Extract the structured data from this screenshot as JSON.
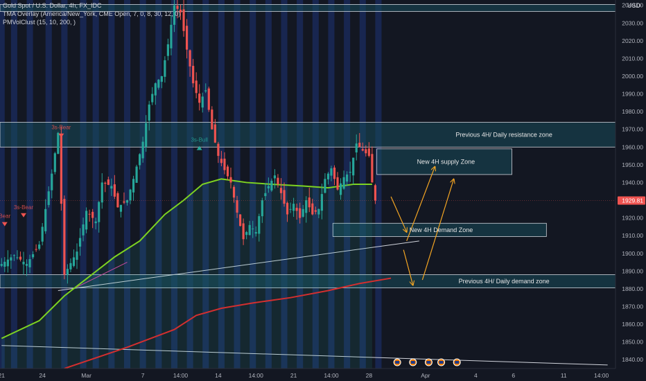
{
  "legend": {
    "title": "Gold Spot / U.S. Dollar, 4h, FX_IDC",
    "indicator1": "TMA Overlay (America/New_York, CME Open, 7, 0, 8, 30, 12, 0)",
    "indicator2": "PMVolClust (15, 10, 200, )"
  },
  "currency": "USD",
  "colors": {
    "background": "#131722",
    "candle_up": "#26a69a",
    "candle_down": "#ef5350",
    "ma_fast": "#7ed321",
    "ma_slow": "#d32f2f",
    "zone_fill": "#184a5a",
    "zone_border": "#d1d4dc",
    "annotation_arrow": "#f5a623",
    "session_stripe": "#1e3a8a",
    "price_tag": "#ef5350"
  },
  "chart_data": {
    "type": "candlestick",
    "symbol": "XAUUSD",
    "timeframe": "4h",
    "ylim": [
      1835,
      2043
    ],
    "y_ticks": [
      1840,
      1850,
      1860,
      1870,
      1880,
      1890,
      1900,
      1910,
      1920,
      1930,
      1940,
      1950,
      1960,
      1970,
      1980,
      1990,
      2000,
      2010,
      2020,
      2030,
      2040
    ],
    "y_tick_labels": [
      "1840.00",
      "1850.00",
      "1860.00",
      "1870.00",
      "1880.00",
      "1890.00",
      "1900.00",
      "1910.00",
      "1920.00",
      "1930.00",
      "1940.00",
      "1950.00",
      "1960.00",
      "1970.00",
      "1980.00",
      "1990.00",
      "2000.00",
      "2010.00",
      "2020.00",
      "2030.00",
      "2040.00"
    ],
    "x_tick_labels": [
      "21",
      "24",
      "Mar",
      "7",
      "14:00",
      "14",
      "14:00",
      "21",
      "14:00",
      "28",
      "Apr",
      "4",
      "6",
      "11",
      "14:00"
    ],
    "x_tick_bars": [
      0,
      13,
      27,
      45,
      57,
      69,
      81,
      93,
      105,
      117,
      135,
      151,
      163,
      179,
      191
    ],
    "bar_count": 196,
    "last_price": 1929.81,
    "last_price_label": "1929.81",
    "ohlc_anchors": [
      [
        0,
        1894
      ],
      [
        4,
        1899
      ],
      [
        8,
        1894
      ],
      [
        12,
        1905
      ],
      [
        16,
        1945
      ],
      [
        18,
        1968
      ],
      [
        20,
        1888
      ],
      [
        24,
        1901
      ],
      [
        27,
        1924
      ],
      [
        30,
        1918
      ],
      [
        32,
        1940
      ],
      [
        35,
        1938
      ],
      [
        37,
        1926
      ],
      [
        40,
        1930
      ],
      [
        42,
        1942
      ],
      [
        45,
        1963
      ],
      [
        47,
        1984
      ],
      [
        49,
        1996
      ],
      [
        51,
        2000
      ],
      [
        53,
        2018
      ],
      [
        55,
        2040
      ],
      [
        57,
        2036
      ],
      [
        59,
        2015
      ],
      [
        61,
        1996
      ],
      [
        63,
        1985
      ],
      [
        65,
        1992
      ],
      [
        67,
        1970
      ],
      [
        69,
        1955
      ],
      [
        71,
        1947
      ],
      [
        73,
        1940
      ],
      [
        75,
        1923
      ],
      [
        77,
        1908
      ],
      [
        79,
        1916
      ],
      [
        81,
        1912
      ],
      [
        83,
        1930
      ],
      [
        85,
        1938
      ],
      [
        87,
        1944
      ],
      [
        89,
        1934
      ],
      [
        91,
        1922
      ],
      [
        93,
        1928
      ],
      [
        95,
        1920
      ],
      [
        97,
        1930
      ],
      [
        99,
        1922
      ],
      [
        101,
        1925
      ],
      [
        103,
        1942
      ],
      [
        105,
        1948
      ],
      [
        107,
        1936
      ],
      [
        109,
        1943
      ],
      [
        111,
        1946
      ],
      [
        113,
        1962
      ],
      [
        115,
        1958
      ],
      [
        117,
        1955
      ],
      [
        118,
        1940
      ],
      [
        119,
        1929.81
      ]
    ],
    "series": [
      {
        "name": "",
        "type": "line",
        "color": "#7ed321",
        "points": [
          [
            0,
            1852
          ],
          [
            12,
            1862
          ],
          [
            20,
            1876
          ],
          [
            28,
            1887
          ],
          [
            36,
            1898
          ],
          [
            44,
            1907
          ],
          [
            52,
            1922
          ],
          [
            58,
            1930
          ],
          [
            64,
            1939
          ],
          [
            70,
            1942
          ],
          [
            78,
            1940
          ],
          [
            86,
            1939
          ],
          [
            96,
            1938
          ],
          [
            104,
            1937
          ],
          [
            112,
            1939
          ],
          [
            118,
            1939
          ]
        ]
      },
      {
        "name": "",
        "type": "line",
        "color": "#d32f2f",
        "points": [
          [
            20,
            1835
          ],
          [
            40,
            1847
          ],
          [
            55,
            1857
          ],
          [
            62,
            1865
          ],
          [
            70,
            1869
          ],
          [
            80,
            1872
          ],
          [
            92,
            1875
          ],
          [
            104,
            1879
          ],
          [
            114,
            1883
          ],
          [
            124,
            1886
          ]
        ]
      }
    ],
    "zones": [
      {
        "label": "",
        "y_top": 2040.5,
        "y_bottom": 2036.5,
        "x_start": 0,
        "x_end": 196
      },
      {
        "label": "Previous 4H/ Daily resistance zone",
        "y_top": 1974,
        "y_bottom": 1960,
        "x_start": 0,
        "x_end": 196
      },
      {
        "label": "New 4H supply Zone",
        "y_top": 1959,
        "y_bottom": 1944.5,
        "x_start": 120,
        "x_end": 163
      },
      {
        "label": "New 4H Demand Zone",
        "y_top": 1917,
        "y_bottom": 1909.5,
        "x_start": 106,
        "x_end": 174
      },
      {
        "label": "Previous 4H/ Daily demand zone",
        "y_top": 1888,
        "y_bottom": 1880.5,
        "x_start": 0,
        "x_end": 196
      }
    ],
    "trendlines": [
      {
        "points": [
          [
            18,
            1879
          ],
          [
            133,
            1907
          ]
        ],
        "color": "#d1d4dc"
      },
      {
        "points": [
          [
            0,
            1848
          ],
          [
            193,
            1837
          ]
        ],
        "color": "#d1d4dc"
      },
      {
        "points": [
          [
            24,
            1881
          ],
          [
            40,
            1895
          ]
        ],
        "color": "#e040a0"
      }
    ],
    "arrows": [
      {
        "points": [
          [
            124,
            1932
          ],
          [
            129,
            1912
          ]
        ]
      },
      {
        "points": [
          [
            129,
            1907
          ],
          [
            138,
            1949
          ]
        ]
      },
      {
        "points": [
          [
            128,
            1902
          ],
          [
            131,
            1882
          ]
        ]
      },
      {
        "points": [
          [
            134,
            1885
          ],
          [
            144,
            1942
          ]
        ]
      }
    ],
    "pattern_labels": [
      {
        "text": "3s-Bear",
        "bar": 19,
        "y": 1970
      },
      {
        "text": "3s-Bull",
        "bar": 63,
        "y": 1963
      },
      {
        "text": "3s-Bear",
        "bar": 7,
        "y": 1925
      },
      {
        "text": "Bear",
        "bar": 1,
        "y": 1920
      }
    ],
    "session_stripe_bars": [
      0,
      4,
      9,
      15,
      20,
      26,
      30,
      35,
      40,
      45,
      50,
      55,
      60,
      65,
      70,
      75,
      80,
      85,
      90,
      95,
      100,
      105,
      110,
      115,
      120
    ],
    "event_icon_bars": [
      126,
      131,
      136,
      140,
      145
    ]
  }
}
